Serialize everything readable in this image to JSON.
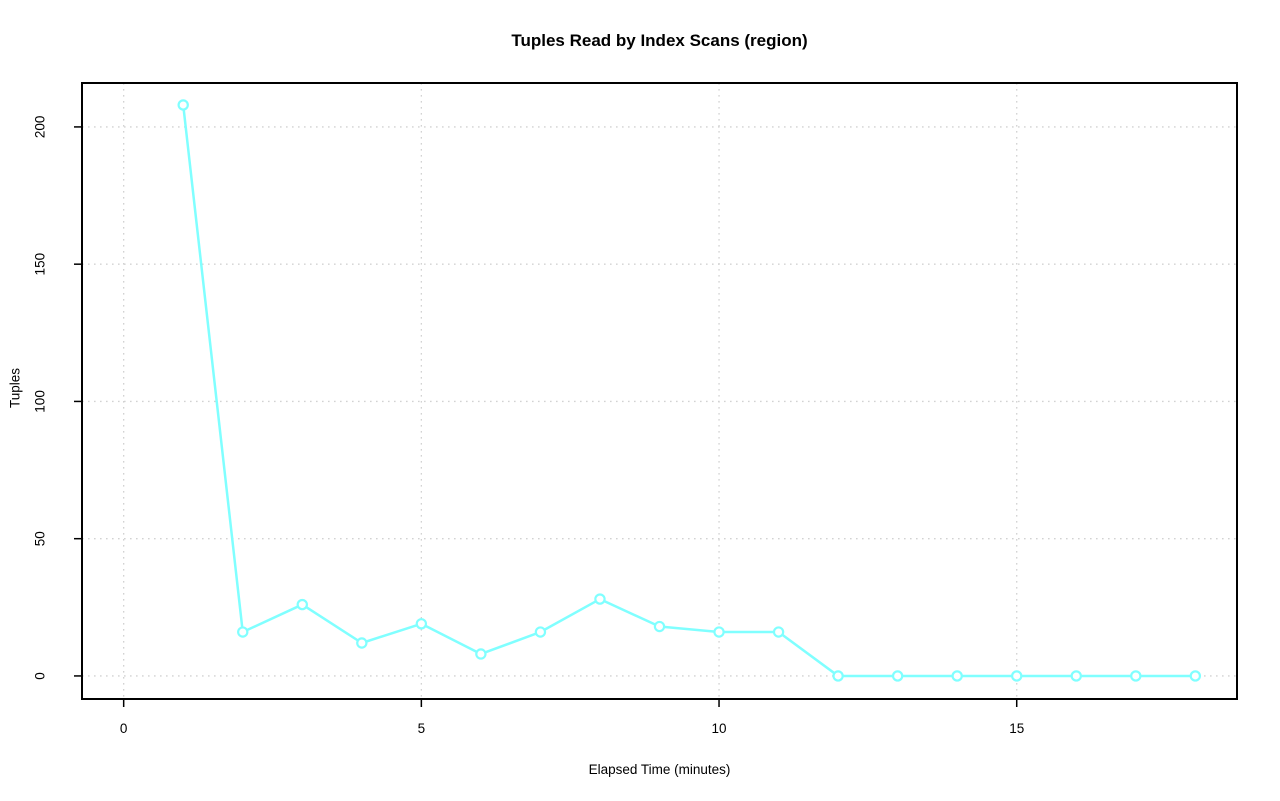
{
  "figure": {
    "background": "#FFFFFF"
  },
  "chart_data": {
    "type": "line",
    "title": "Tuples Read by Index Scans (region)",
    "xlabel": "Elapsed Time (minutes)",
    "ylabel": "Tuples",
    "x": [
      1,
      2,
      3,
      4,
      5,
      6,
      7,
      8,
      9,
      10,
      11,
      12,
      13,
      14,
      15,
      16,
      17,
      18
    ],
    "y": [
      208,
      16,
      26,
      12,
      19,
      8,
      16,
      28,
      18,
      16,
      16,
      0,
      0,
      0,
      0,
      0,
      0,
      0
    ],
    "x_ticks": [
      0,
      5,
      10,
      15
    ],
    "y_ticks": [
      0,
      50,
      100,
      150,
      200
    ],
    "xlim": [
      -0.7,
      18.7
    ],
    "ylim": [
      -8.4,
      216
    ],
    "grid": "dotted",
    "legend_position": "none",
    "style": {
      "line_color": "#80FFFF",
      "marker": "open-circle",
      "marker_fill": "#FFFFFF",
      "grid_color": "#D2D2D2",
      "axis_color": "#000000",
      "text_color": "#000000"
    }
  }
}
